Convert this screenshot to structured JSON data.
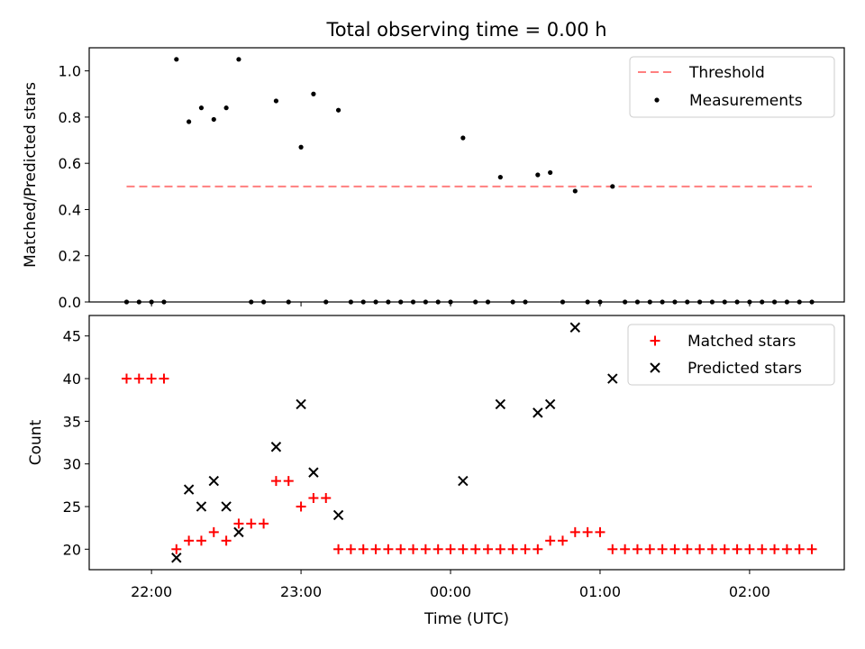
{
  "title": "Total observing time = 0.00 h",
  "x_tick_labels": [
    "22:00",
    "23:00",
    "00:00",
    "01:00",
    "02:00"
  ],
  "chart_data": [
    {
      "type": "scatter",
      "ylabel": "Matched/Predicted stars",
      "ylim": [
        0,
        1.1
      ],
      "y_ticks": [
        0.0,
        0.2,
        0.4,
        0.6,
        0.8,
        1.0
      ],
      "y_tick_labels": [
        "0.0",
        "0.2",
        "0.4",
        "0.6",
        "0.8",
        "1.0"
      ],
      "x_range": [
        "21:35",
        "02:38"
      ],
      "legend": "top-right",
      "threshold": {
        "name": "Threshold",
        "value": 0.5,
        "x_start": "21:50",
        "x_end": "02:25",
        "color": "#ff7f7f",
        "style": "dashed"
      },
      "series": [
        {
          "name": "Measurements",
          "color": "#000000",
          "x": [
            "21:50",
            "21:55",
            "22:00",
            "22:05",
            "22:10",
            "22:15",
            "22:20",
            "22:25",
            "22:30",
            "22:35",
            "22:40",
            "22:45",
            "22:50",
            "22:55",
            "23:00",
            "23:05",
            "23:10",
            "23:15",
            "23:20",
            "23:25",
            "23:30",
            "23:35",
            "23:40",
            "23:45",
            "23:50",
            "23:55",
            "00:00",
            "00:05",
            "00:10",
            "00:15",
            "00:20",
            "00:25",
            "00:30",
            "00:35",
            "00:40",
            "00:45",
            "00:50",
            "00:55",
            "01:00",
            "01:05",
            "01:10",
            "01:15",
            "01:20",
            "01:25",
            "01:30",
            "01:35",
            "01:40",
            "01:45",
            "01:50",
            "01:55",
            "02:00",
            "02:05",
            "02:10",
            "02:15",
            "02:20",
            "02:25"
          ],
          "y": [
            0,
            0,
            0,
            0,
            1.05,
            0.78,
            0.84,
            0.79,
            0.84,
            1.05,
            0,
            0,
            0.87,
            0,
            0.67,
            0.9,
            0,
            0.83,
            0,
            0,
            0,
            0,
            0,
            0,
            0,
            0,
            0,
            0.71,
            0,
            0,
            0.54,
            0,
            0,
            0.55,
            0.56,
            0,
            0.48,
            0,
            0,
            0.5,
            0,
            0,
            0,
            0,
            0,
            0,
            0,
            0,
            0,
            0,
            0,
            0,
            0,
            0,
            0,
            0
          ]
        }
      ]
    },
    {
      "type": "scatter",
      "xlabel": "Time (UTC)",
      "ylabel": "Count",
      "ylim": [
        17.6,
        47.4
      ],
      "y_ticks": [
        20,
        25,
        30,
        35,
        40,
        45
      ],
      "y_tick_labels": [
        "20",
        "25",
        "30",
        "35",
        "40",
        "45"
      ],
      "x_range": [
        "21:35",
        "02:38"
      ],
      "legend": "top-right",
      "series": [
        {
          "name": "Matched stars",
          "color": "#ff0000",
          "marker": "+",
          "x": [
            "21:50",
            "21:55",
            "22:00",
            "22:05",
            "22:10",
            "22:15",
            "22:20",
            "22:25",
            "22:30",
            "22:35",
            "22:40",
            "22:45",
            "22:50",
            "22:55",
            "23:00",
            "23:05",
            "23:10",
            "23:15",
            "23:20",
            "23:25",
            "23:30",
            "23:35",
            "23:40",
            "23:45",
            "23:50",
            "23:55",
            "00:00",
            "00:05",
            "00:10",
            "00:15",
            "00:20",
            "00:25",
            "00:30",
            "00:35",
            "00:40",
            "00:45",
            "00:50",
            "00:55",
            "01:00",
            "01:05",
            "01:10",
            "01:15",
            "01:20",
            "01:25",
            "01:30",
            "01:35",
            "01:40",
            "01:45",
            "01:50",
            "01:55",
            "02:00",
            "02:05",
            "02:10",
            "02:15",
            "02:20",
            "02:25"
          ],
          "y": [
            40,
            40,
            40,
            40,
            20,
            21,
            21,
            22,
            21,
            23,
            23,
            23,
            28,
            28,
            25,
            26,
            26,
            20,
            20,
            20,
            20,
            20,
            20,
            20,
            20,
            20,
            20,
            20,
            20,
            20,
            20,
            20,
            20,
            20,
            21,
            21,
            22,
            22,
            22,
            20,
            20,
            20,
            20,
            20,
            20,
            20,
            20,
            20,
            20,
            20,
            20,
            20,
            20,
            20,
            20,
            20
          ]
        },
        {
          "name": "Predicted stars",
          "color": "#000000",
          "marker": "x",
          "x": [
            "22:10",
            "22:15",
            "22:20",
            "22:25",
            "22:30",
            "22:35",
            "22:50",
            "23:00",
            "23:05",
            "23:15",
            "00:05",
            "00:20",
            "00:35",
            "00:40",
            "00:50",
            "01:05"
          ],
          "y": [
            19,
            27,
            25,
            28,
            25,
            22,
            32,
            37,
            29,
            24,
            28,
            37,
            36,
            37,
            46,
            40
          ]
        }
      ]
    }
  ]
}
